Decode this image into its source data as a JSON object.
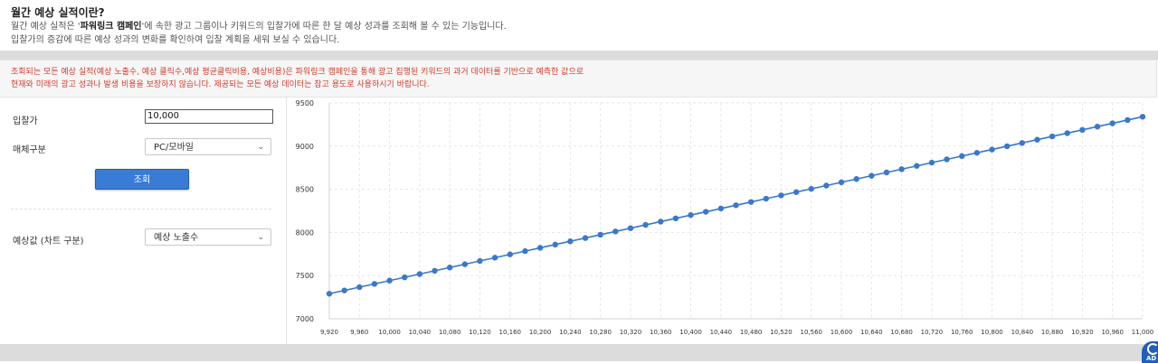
{
  "intro": {
    "title": "월간 예상 실적이란?",
    "line1_prefix": "월간 예상 실적은 '",
    "line1_bold": "파워링크 캠페인",
    "line1_suffix": "'에 속한 광고 그룹이나 키워드의 입찰가에 따른 한 달 예상 성과를 조회해 볼 수 있는 기능입니다.",
    "line2": "입찰가의 증감에 따른 예상 성과의 변화를 확인하여 입찰 계획을 세워 보실 수 있습니다."
  },
  "notice": {
    "line1": "조회되는 모든 예상 실적(예상 노출수, 예상 클릭수,예상 평균클릭비용, 예상비용)은 파워링크 캠페인을 통해 광고 집행된 키워드의 과거 데이터를 기반으로 예측한 값으로",
    "line2": "현재와 미래의 광고 성과나 발생 비용을 보장하지 않습니다. 제공되는 모든 예상 데이터는 참고 용도로 사용하시기 바랍니다."
  },
  "form": {
    "bid_label": "입찰가",
    "bid_value": "10,000",
    "media_label": "매체구분",
    "media_value": "PC/모바일",
    "search_button": "조회",
    "estimate_label": "예상값 (차트 구분)",
    "estimate_value": "예상 노출수"
  },
  "ad_badge": {
    "label": "AD"
  },
  "chart_data": {
    "type": "line",
    "x": [
      9920,
      9940,
      9960,
      9980,
      10000,
      10020,
      10040,
      10060,
      10080,
      10100,
      10120,
      10140,
      10160,
      10180,
      10200,
      10220,
      10240,
      10260,
      10280,
      10300,
      10320,
      10340,
      10360,
      10380,
      10400,
      10420,
      10440,
      10460,
      10480,
      10500,
      10520,
      10540,
      10560,
      10580,
      10600,
      10620,
      10640,
      10660,
      10680,
      10700,
      10720,
      10740,
      10760,
      10780,
      10800,
      10820,
      10840,
      10860,
      10880,
      10900,
      10920,
      10940,
      10960,
      10980,
      11000
    ],
    "y_start": 7290,
    "y_end": 9340,
    "xticks": [
      "9,920",
      "9,960",
      "10,000",
      "10,040",
      "10,080",
      "10,120",
      "10,160",
      "10,200",
      "10,240",
      "10,280",
      "10,320",
      "10,360",
      "10,400",
      "10,440",
      "10,480",
      "10,520",
      "10,560",
      "10,600",
      "10,640",
      "10,680",
      "10,720",
      "10,760",
      "10,800",
      "10,840",
      "10,880",
      "10,920",
      "10,960",
      "11,000"
    ],
    "yticks": [
      7000,
      7500,
      8000,
      8500,
      9000,
      9500
    ],
    "ylim": [
      7000,
      9500
    ],
    "xlim": [
      9920,
      11000
    ],
    "grid": true,
    "line_color": "#3a78c9"
  }
}
